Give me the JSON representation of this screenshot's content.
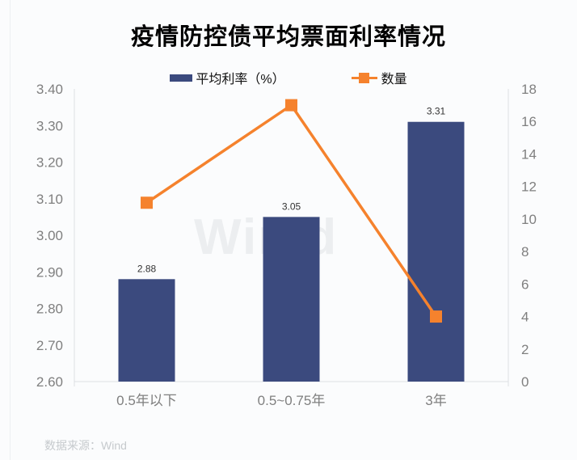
{
  "title": "疫情防控债平均票面利率情况",
  "legend": [
    {
      "label": "平均利率（%）",
      "type": "bar"
    },
    {
      "label": "数量",
      "type": "line"
    }
  ],
  "watermark": "Win.d",
  "source": "数据来源：Wind",
  "colors": {
    "bar": "#3b4a7e",
    "line": "#f5822d",
    "axis_line": "#dcdfe3",
    "tick_text": "#7f7f7f",
    "category_text": "#7f7f7f",
    "value_label_text": "#333333",
    "background": "#fbfcfd"
  },
  "chart_data": {
    "type": "bar",
    "categories": [
      "0.5年以下",
      "0.5~0.75年",
      "3年"
    ],
    "series": [
      {
        "name": "平均利率（%）",
        "type": "bar",
        "axis": "left",
        "values": [
          2.88,
          3.05,
          3.31
        ],
        "data_labels": [
          "2.88",
          "3.05",
          "3.31"
        ]
      },
      {
        "name": "数量",
        "type": "line",
        "axis": "right",
        "values": [
          11,
          17,
          4
        ]
      }
    ],
    "left_axis": {
      "min": 2.6,
      "max": 3.4,
      "step": 0.1,
      "ticks": [
        "3.40",
        "3.30",
        "3.20",
        "3.10",
        "3.00",
        "2.90",
        "2.80",
        "2.70",
        "2.60"
      ]
    },
    "right_axis": {
      "min": 0,
      "max": 18,
      "step": 2,
      "ticks": [
        "18",
        "16",
        "14",
        "12",
        "10",
        "8",
        "6",
        "4",
        "2",
        "0"
      ]
    },
    "grid": false,
    "legend_position": "top",
    "title": "疫情防控债平均票面利率情况",
    "source": "数据来源：Wind"
  }
}
